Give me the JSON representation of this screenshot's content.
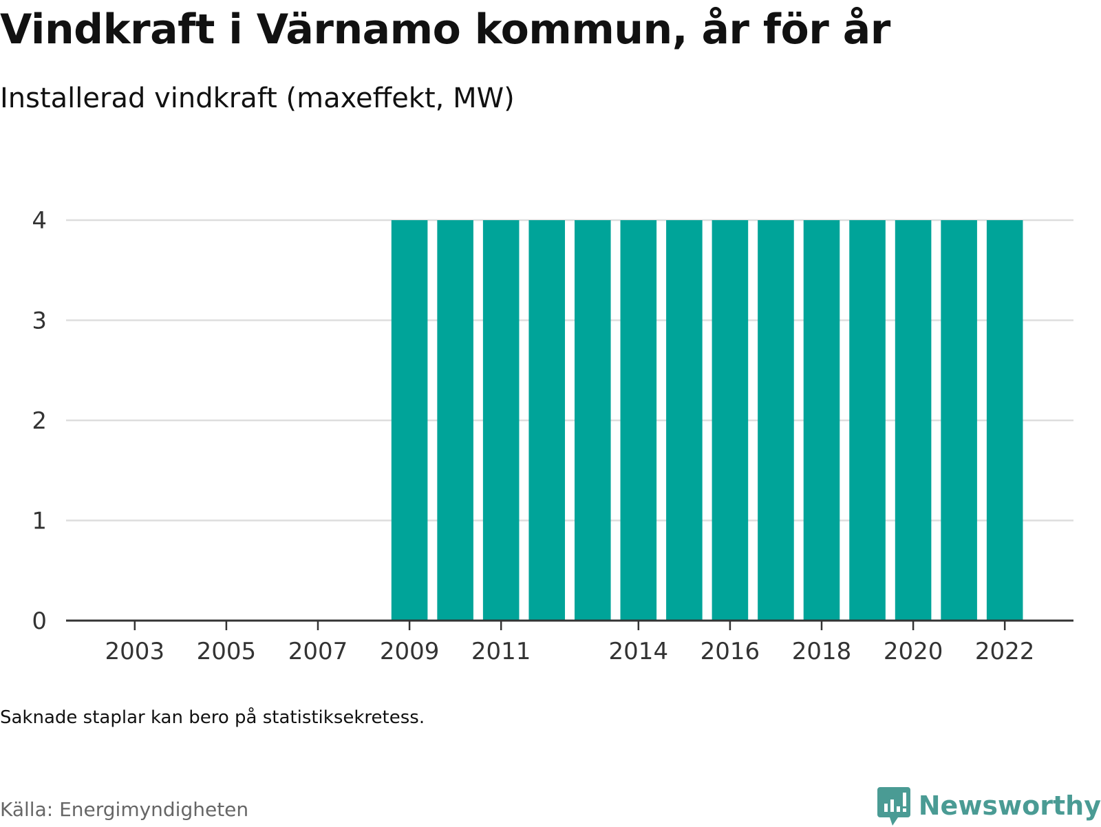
{
  "header": {
    "title": "Vindkraft i Värnamo kommun, år för år",
    "subtitle": "Installerad vindkraft (maxeffekt, MW)"
  },
  "footer": {
    "note": "Saknade staplar kan bero på statistiksekretess.",
    "source": "Källa: Energimyndigheten",
    "brand": "Newsworthy"
  },
  "colors": {
    "bar": "#00a499",
    "brand": "#4a9b94",
    "grid": "#dddddd",
    "axis": "#333333"
  },
  "chart_data": {
    "type": "bar",
    "categories": [
      "2002",
      "2003",
      "2004",
      "2005",
      "2006",
      "2007",
      "2008",
      "2009",
      "2010",
      "2011",
      "2012",
      "2013",
      "2014",
      "2015",
      "2016",
      "2017",
      "2018",
      "2019",
      "2020",
      "2021",
      "2022",
      "2023"
    ],
    "values": [
      0,
      0,
      0,
      0,
      0,
      0,
      0,
      4,
      4,
      4,
      4,
      4,
      4,
      4,
      4,
      4,
      4,
      4,
      4,
      4,
      4,
      null
    ],
    "x_tick_labels": [
      "2003",
      "2005",
      "2007",
      "2009",
      "2011",
      "2014",
      "2016",
      "2018",
      "2020",
      "2022"
    ],
    "y_ticks": [
      0,
      1,
      2,
      3,
      4
    ],
    "ylim": [
      0,
      4
    ],
    "grid": true,
    "title": "Vindkraft i Värnamo kommun, år för år",
    "subtitle": "Installerad vindkraft (maxeffekt, MW)",
    "xlabel": "",
    "ylabel": ""
  }
}
